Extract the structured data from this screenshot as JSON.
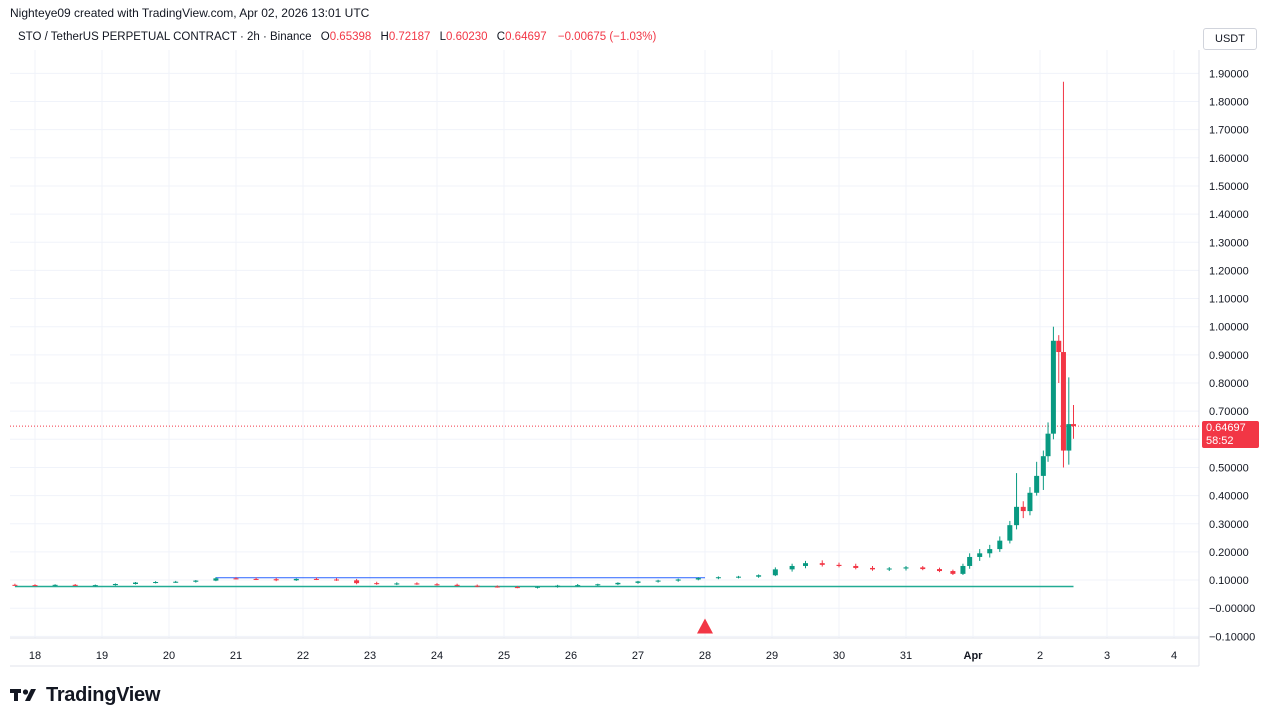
{
  "attribution": "Nighteye09 created with TradingView.com, Apr 02, 2026 13:01 UTC",
  "legend": {
    "symbol": "STO / TetherUS PERPETUAL CONTRACT · 2h · Binance",
    "o_label": "O",
    "o_value": "0.65398",
    "h_label": "H",
    "h_value": "0.72187",
    "l_label": "L",
    "l_value": "0.60230",
    "c_label": "C",
    "c_value": "0.64697",
    "change": "−0.00675 (−1.03%)"
  },
  "currency": "USDT",
  "price_label": {
    "price": "0.64697",
    "countdown": "58:52"
  },
  "logo_text": "TradingView",
  "colors": {
    "up": "#089981",
    "down": "#f23645",
    "grid": "#f0f3fa",
    "hline_blue": "#2962ff",
    "hline_green": "#22ab94"
  },
  "chart_data": {
    "type": "candlestick",
    "symbol": "STO/USDT Perpetual",
    "interval": "2h",
    "ylim": [
      -0.1,
      2.0
    ],
    "y_ticks": [
      "1.90000",
      "1.80000",
      "1.70000",
      "1.60000",
      "1.50000",
      "1.40000",
      "1.30000",
      "1.20000",
      "1.10000",
      "1.00000",
      "0.90000",
      "0.80000",
      "0.70000",
      "0.60000",
      "0.50000",
      "0.40000",
      "0.30000",
      "0.20000",
      "0.10000",
      "−0.00000",
      "−0.10000"
    ],
    "x_ticks": [
      {
        "label": "18",
        "day": 18
      },
      {
        "label": "19",
        "day": 19
      },
      {
        "label": "20",
        "day": 20
      },
      {
        "label": "21",
        "day": 21
      },
      {
        "label": "22",
        "day": 22
      },
      {
        "label": "23",
        "day": 23
      },
      {
        "label": "24",
        "day": 24
      },
      {
        "label": "25",
        "day": 25
      },
      {
        "label": "26",
        "day": 26
      },
      {
        "label": "27",
        "day": 27
      },
      {
        "label": "28",
        "day": 28
      },
      {
        "label": "29",
        "day": 29
      },
      {
        "label": "30",
        "day": 30
      },
      {
        "label": "31",
        "day": 31
      },
      {
        "label": "Apr",
        "day": 32
      },
      {
        "label": "2",
        "day": 33
      },
      {
        "label": "3",
        "day": 34
      },
      {
        "label": "4",
        "day": 35
      }
    ],
    "candles": [
      {
        "d": 17.7,
        "o": 0.083,
        "h": 0.087,
        "l": 0.08,
        "c": 0.082
      },
      {
        "d": 18.0,
        "o": 0.082,
        "h": 0.085,
        "l": 0.079,
        "c": 0.081
      },
      {
        "d": 18.3,
        "o": 0.081,
        "h": 0.085,
        "l": 0.078,
        "c": 0.083
      },
      {
        "d": 18.6,
        "o": 0.083,
        "h": 0.086,
        "l": 0.079,
        "c": 0.08
      },
      {
        "d": 18.9,
        "o": 0.08,
        "h": 0.084,
        "l": 0.077,
        "c": 0.082
      },
      {
        "d": 19.2,
        "o": 0.082,
        "h": 0.088,
        "l": 0.08,
        "c": 0.086
      },
      {
        "d": 19.5,
        "o": 0.086,
        "h": 0.093,
        "l": 0.084,
        "c": 0.091
      },
      {
        "d": 19.8,
        "o": 0.091,
        "h": 0.096,
        "l": 0.088,
        "c": 0.093
      },
      {
        "d": 20.1,
        "o": 0.093,
        "h": 0.097,
        "l": 0.09,
        "c": 0.094
      },
      {
        "d": 20.4,
        "o": 0.094,
        "h": 0.1,
        "l": 0.091,
        "c": 0.098
      },
      {
        "d": 20.7,
        "o": 0.098,
        "h": 0.11,
        "l": 0.096,
        "c": 0.106
      },
      {
        "d": 21.0,
        "o": 0.106,
        "h": 0.11,
        "l": 0.102,
        "c": 0.104
      },
      {
        "d": 21.3,
        "o": 0.104,
        "h": 0.109,
        "l": 0.1,
        "c": 0.103
      },
      {
        "d": 21.6,
        "o": 0.103,
        "h": 0.108,
        "l": 0.096,
        "c": 0.099
      },
      {
        "d": 21.9,
        "o": 0.099,
        "h": 0.106,
        "l": 0.097,
        "c": 0.104
      },
      {
        "d": 22.2,
        "o": 0.104,
        "h": 0.109,
        "l": 0.1,
        "c": 0.102
      },
      {
        "d": 22.5,
        "o": 0.102,
        "h": 0.107,
        "l": 0.097,
        "c": 0.099
      },
      {
        "d": 22.8,
        "o": 0.099,
        "h": 0.104,
        "l": 0.085,
        "c": 0.089
      },
      {
        "d": 23.1,
        "o": 0.089,
        "h": 0.094,
        "l": 0.083,
        "c": 0.086
      },
      {
        "d": 23.4,
        "o": 0.086,
        "h": 0.092,
        "l": 0.082,
        "c": 0.088
      },
      {
        "d": 23.7,
        "o": 0.088,
        "h": 0.092,
        "l": 0.083,
        "c": 0.085
      },
      {
        "d": 24.0,
        "o": 0.085,
        "h": 0.089,
        "l": 0.08,
        "c": 0.083
      },
      {
        "d": 24.3,
        "o": 0.083,
        "h": 0.087,
        "l": 0.078,
        "c": 0.08
      },
      {
        "d": 24.6,
        "o": 0.08,
        "h": 0.084,
        "l": 0.075,
        "c": 0.077
      },
      {
        "d": 24.9,
        "o": 0.077,
        "h": 0.081,
        "l": 0.073,
        "c": 0.075
      },
      {
        "d": 25.2,
        "o": 0.075,
        "h": 0.079,
        "l": 0.071,
        "c": 0.074
      },
      {
        "d": 25.5,
        "o": 0.074,
        "h": 0.078,
        "l": 0.07,
        "c": 0.076
      },
      {
        "d": 25.8,
        "o": 0.076,
        "h": 0.083,
        "l": 0.073,
        "c": 0.08
      },
      {
        "d": 26.1,
        "o": 0.08,
        "h": 0.086,
        "l": 0.077,
        "c": 0.082
      },
      {
        "d": 26.4,
        "o": 0.082,
        "h": 0.087,
        "l": 0.079,
        "c": 0.085
      },
      {
        "d": 26.7,
        "o": 0.085,
        "h": 0.092,
        "l": 0.082,
        "c": 0.09
      },
      {
        "d": 27.0,
        "o": 0.09,
        "h": 0.097,
        "l": 0.087,
        "c": 0.095
      },
      {
        "d": 27.3,
        "o": 0.095,
        "h": 0.101,
        "l": 0.091,
        "c": 0.098
      },
      {
        "d": 27.6,
        "o": 0.098,
        "h": 0.105,
        "l": 0.094,
        "c": 0.102
      },
      {
        "d": 27.9,
        "o": 0.102,
        "h": 0.11,
        "l": 0.099,
        "c": 0.107
      },
      {
        "d": 28.2,
        "o": 0.107,
        "h": 0.113,
        "l": 0.103,
        "c": 0.11
      },
      {
        "d": 28.5,
        "o": 0.11,
        "h": 0.115,
        "l": 0.106,
        "c": 0.112
      },
      {
        "d": 28.8,
        "o": 0.112,
        "h": 0.12,
        "l": 0.108,
        "c": 0.117
      },
      {
        "d": 29.05,
        "o": 0.117,
        "h": 0.145,
        "l": 0.114,
        "c": 0.138
      },
      {
        "d": 29.3,
        "o": 0.138,
        "h": 0.158,
        "l": 0.13,
        "c": 0.15
      },
      {
        "d": 29.5,
        "o": 0.15,
        "h": 0.168,
        "l": 0.142,
        "c": 0.16
      },
      {
        "d": 29.75,
        "o": 0.16,
        "h": 0.17,
        "l": 0.148,
        "c": 0.154
      },
      {
        "d": 30.0,
        "o": 0.154,
        "h": 0.162,
        "l": 0.145,
        "c": 0.15
      },
      {
        "d": 30.25,
        "o": 0.15,
        "h": 0.158,
        "l": 0.138,
        "c": 0.143
      },
      {
        "d": 30.5,
        "o": 0.143,
        "h": 0.15,
        "l": 0.133,
        "c": 0.138
      },
      {
        "d": 30.75,
        "o": 0.138,
        "h": 0.146,
        "l": 0.132,
        "c": 0.141
      },
      {
        "d": 31.0,
        "o": 0.141,
        "h": 0.15,
        "l": 0.134,
        "c": 0.145
      },
      {
        "d": 31.25,
        "o": 0.145,
        "h": 0.15,
        "l": 0.135,
        "c": 0.139
      },
      {
        "d": 31.5,
        "o": 0.139,
        "h": 0.144,
        "l": 0.128,
        "c": 0.132
      },
      {
        "d": 31.7,
        "o": 0.132,
        "h": 0.137,
        "l": 0.118,
        "c": 0.122
      },
      {
        "d": 31.85,
        "o": 0.122,
        "h": 0.158,
        "l": 0.118,
        "c": 0.15
      },
      {
        "d": 31.95,
        "o": 0.15,
        "h": 0.195,
        "l": 0.14,
        "c": 0.182
      },
      {
        "d": 32.1,
        "o": 0.182,
        "h": 0.21,
        "l": 0.168,
        "c": 0.195
      },
      {
        "d": 32.25,
        "o": 0.195,
        "h": 0.225,
        "l": 0.18,
        "c": 0.21
      },
      {
        "d": 32.4,
        "o": 0.21,
        "h": 0.255,
        "l": 0.2,
        "c": 0.24
      },
      {
        "d": 32.55,
        "o": 0.24,
        "h": 0.31,
        "l": 0.23,
        "c": 0.295
      },
      {
        "d": 32.65,
        "o": 0.295,
        "h": 0.48,
        "l": 0.28,
        "c": 0.36
      },
      {
        "d": 32.75,
        "o": 0.36,
        "h": 0.38,
        "l": 0.32,
        "c": 0.345
      },
      {
        "d": 32.85,
        "o": 0.345,
        "h": 0.43,
        "l": 0.33,
        "c": 0.41
      },
      {
        "d": 32.95,
        "o": 0.41,
        "h": 0.52,
        "l": 0.4,
        "c": 0.47
      },
      {
        "d": 33.05,
        "o": 0.47,
        "h": 0.56,
        "l": 0.42,
        "c": 0.54
      },
      {
        "d": 33.12,
        "o": 0.54,
        "h": 0.66,
        "l": 0.52,
        "c": 0.62
      },
      {
        "d": 33.2,
        "o": 0.62,
        "h": 1.0,
        "l": 0.6,
        "c": 0.95
      },
      {
        "d": 33.28,
        "o": 0.95,
        "h": 0.97,
        "l": 0.8,
        "c": 0.91
      },
      {
        "d": 33.35,
        "o": 0.91,
        "h": 1.87,
        "l": 0.5,
        "c": 0.56
      },
      {
        "d": 33.43,
        "o": 0.56,
        "h": 0.82,
        "l": 0.51,
        "c": 0.654
      },
      {
        "d": 33.5,
        "o": 0.654,
        "h": 0.722,
        "l": 0.602,
        "c": 0.647
      }
    ],
    "horizontal_lines": [
      {
        "name": "blue line",
        "y": 0.108,
        "from": 20.7,
        "to": 28.0
      },
      {
        "name": "green line",
        "y": 0.077,
        "from": 17.7,
        "to": 33.5
      }
    ],
    "current_price": 0.64697,
    "marker": {
      "type": "triangle-up",
      "day": 28,
      "y": -0.065
    }
  }
}
